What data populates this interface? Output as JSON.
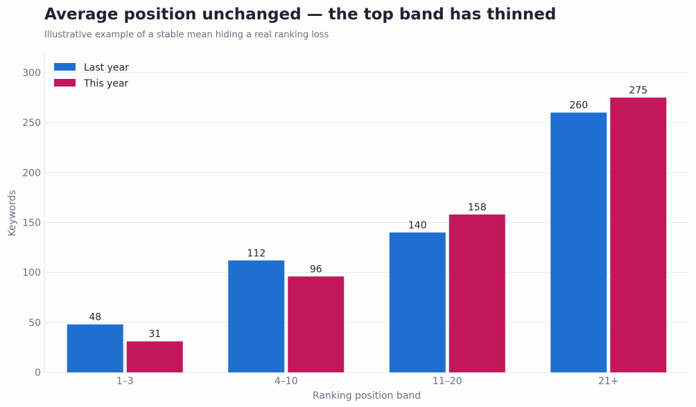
{
  "title": "Average position unchanged — the top band has thinned",
  "subtitle": "Illustrative example of a stable mean hiding a real ranking loss",
  "chart_data": {
    "type": "bar",
    "categories": [
      "1–3",
      "4–10",
      "11–20",
      "21+"
    ],
    "series": [
      {
        "name": "Last year",
        "values": [
          48,
          112,
          140,
          260
        ],
        "color": "#1f6fd1"
      },
      {
        "name": "This year",
        "values": [
          31,
          96,
          158,
          275
        ],
        "color": "#c2185b"
      }
    ],
    "xlabel": "Ranking position band",
    "ylabel": "Keywords",
    "ylim": [
      0,
      320
    ],
    "yticks": [
      0,
      50,
      100,
      150,
      200,
      250,
      300
    ],
    "grid": true,
    "legend": "top-left"
  }
}
